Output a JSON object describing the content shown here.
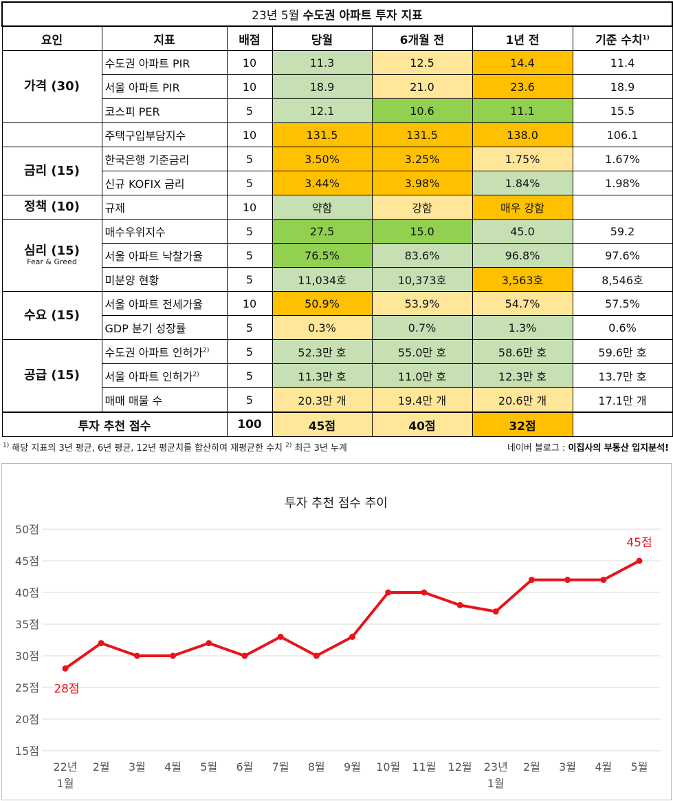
{
  "table": {
    "title_prefix": "23년 5월 ",
    "title_bold": "수도권 아파트 투자 지표",
    "headers": [
      "요인",
      "지표",
      "배점",
      "당월",
      "6개월 전",
      "1년 전",
      "기준 수치"
    ],
    "header_sup": "1)",
    "groups": [
      {
        "factor": "가격 (30)",
        "factor_sub": "",
        "rows": [
          {
            "name": "수도권 아파트 PIR",
            "sup": "",
            "score": "10",
            "cur": "11.3",
            "m6": "12.5",
            "y1": "14.4",
            "base": "11.4",
            "colors": [
              "#c6e0b4",
              "#ffe699",
              "#ffc000"
            ]
          },
          {
            "name": "서울 아파트 PIR",
            "sup": "",
            "score": "10",
            "cur": "18.9",
            "m6": "21.0",
            "y1": "23.6",
            "base": "18.9",
            "colors": [
              "#c6e0b4",
              "#ffe699",
              "#ffc000"
            ]
          },
          {
            "name": "코스피 PER",
            "sup": "",
            "score": "5",
            "cur": "12.1",
            "m6": "10.6",
            "y1": "11.1",
            "base": "15.5",
            "colors": [
              "#c6e0b4",
              "#92d050",
              "#92d050"
            ]
          }
        ]
      },
      {
        "factor": "",
        "factor_sub": "",
        "rows": [
          {
            "name": "주택구입부담지수",
            "sup": "",
            "score": "10",
            "cur": "131.5",
            "m6": "131.5",
            "y1": "138.0",
            "base": "106.1",
            "colors": [
              "#ffc000",
              "#ffc000",
              "#ffc000"
            ]
          }
        ]
      },
      {
        "factor": "금리 (15)",
        "factor_sub": "",
        "rows": [
          {
            "name": "한국은행 기준금리",
            "sup": "",
            "score": "5",
            "cur": "3.50%",
            "m6": "3.25%",
            "y1": "1.75%",
            "base": "1.67%",
            "colors": [
              "#ffc000",
              "#ffc000",
              "#ffe699"
            ]
          },
          {
            "name": "신규 KOFIX 금리",
            "sup": "",
            "score": "5",
            "cur": "3.44%",
            "m6": "3.98%",
            "y1": "1.84%",
            "base": "1.98%",
            "colors": [
              "#ffc000",
              "#ffc000",
              "#c6e0b4"
            ]
          }
        ]
      },
      {
        "factor": "정책 (10)",
        "factor_sub": "",
        "rows": [
          {
            "name": "규제",
            "sup": "",
            "score": "10",
            "cur": "약함",
            "m6": "강함",
            "y1": "매우 강함",
            "base": "",
            "colors": [
              "#c6e0b4",
              "#ffe699",
              "#ffc000"
            ]
          }
        ]
      },
      {
        "factor": "심리 (15)",
        "factor_sub": "Fear & Greed",
        "rows": [
          {
            "name": "매수우위지수",
            "sup": "",
            "score": "5",
            "cur": "27.5",
            "m6": "15.0",
            "y1": "45.0",
            "base": "59.2",
            "colors": [
              "#92d050",
              "#92d050",
              "#c6e0b4"
            ]
          },
          {
            "name": "서울 아파트 낙찰가율",
            "sup": "",
            "score": "5",
            "cur": "76.5%",
            "m6": "83.6%",
            "y1": "96.8%",
            "base": "97.6%",
            "colors": [
              "#92d050",
              "#c6e0b4",
              "#c6e0b4"
            ]
          },
          {
            "name": "미분양 현황",
            "sup": "",
            "score": "5",
            "cur": "11,034호",
            "m6": "10,373호",
            "y1": "3,563호",
            "base": "8,546호",
            "colors": [
              "#c6e0b4",
              "#c6e0b4",
              "#ffc000"
            ]
          }
        ]
      },
      {
        "factor": "수요 (15)",
        "factor_sub": "",
        "rows": [
          {
            "name": "서울 아파트 전세가율",
            "sup": "",
            "score": "10",
            "cur": "50.9%",
            "m6": "53.9%",
            "y1": "54.7%",
            "base": "57.5%",
            "colors": [
              "#ffc000",
              "#ffe699",
              "#ffe699"
            ]
          },
          {
            "name": "GDP 분기 성장률",
            "sup": "",
            "score": "5",
            "cur": "0.3%",
            "m6": "0.7%",
            "y1": "1.3%",
            "base": "0.6%",
            "colors": [
              "#ffe699",
              "#c6e0b4",
              "#c6e0b4"
            ]
          }
        ]
      },
      {
        "factor": "공급 (15)",
        "factor_sub": "",
        "rows": [
          {
            "name": "수도권 아파트 인허가",
            "sup": "2)",
            "score": "5",
            "cur": "52.3만 호",
            "m6": "55.0만 호",
            "y1": "58.6만 호",
            "base": "59.6만 호",
            "colors": [
              "#c6e0b4",
              "#c6e0b4",
              "#c6e0b4"
            ]
          },
          {
            "name": "서울 아파트 인허가",
            "sup": "2)",
            "score": "5",
            "cur": "11.3만 호",
            "m6": "11.0만 호",
            "y1": "12.3만 호",
            "base": "13.7만 호",
            "colors": [
              "#c6e0b4",
              "#c6e0b4",
              "#c6e0b4"
            ]
          },
          {
            "name": "매매 매물 수",
            "sup": "",
            "score": "5",
            "cur": "20.3만 개",
            "m6": "19.4만 개",
            "y1": "20.6만 개",
            "base": "17.1만 개",
            "colors": [
              "#ffe699",
              "#ffe699",
              "#ffe699"
            ]
          }
        ]
      }
    ],
    "total": {
      "label": "투자 추천 점수",
      "score": "100",
      "cur": "45점",
      "m6": "40점",
      "y1": "32점",
      "base": "",
      "colors": [
        "#ffe699",
        "#ffe699",
        "#ffc000"
      ]
    }
  },
  "footnote": {
    "sup1": "1)",
    "text1": " 해당 지표의 3년 평균, 6년 평균, 12년 평균치를 합산하여 재평균한 수치 ",
    "sup2": "2)",
    "text2": " 최근 3년 누계"
  },
  "credit": {
    "prefix": "네이버 블로그 : ",
    "bold": "이집사의 부동산 입지분석!"
  },
  "chart_data": {
    "type": "line",
    "title": "투자 추천 점수 추이",
    "categories": [
      "22년\n1월",
      "2월",
      "3월",
      "4월",
      "5월",
      "6월",
      "7월",
      "8월",
      "9월",
      "10월",
      "11월",
      "12월",
      "23년\n1월",
      "2월",
      "3월",
      "4월",
      "5월"
    ],
    "series": [
      {
        "values": [
          28,
          32,
          30,
          30,
          32,
          30,
          33,
          30,
          33,
          40,
          40,
          38,
          37,
          42,
          42,
          42,
          45
        ]
      }
    ],
    "ylim": [
      15,
      50
    ],
    "yticks": [
      15,
      20,
      25,
      30,
      35,
      40,
      45,
      50
    ],
    "ytick_suffix": "점",
    "annotations": [
      {
        "index": 0,
        "text": "28점"
      },
      {
        "index": 16,
        "text": "45점"
      }
    ],
    "line_color": "#e8141b",
    "grid": true,
    "xlabel": "",
    "ylabel": ""
  }
}
